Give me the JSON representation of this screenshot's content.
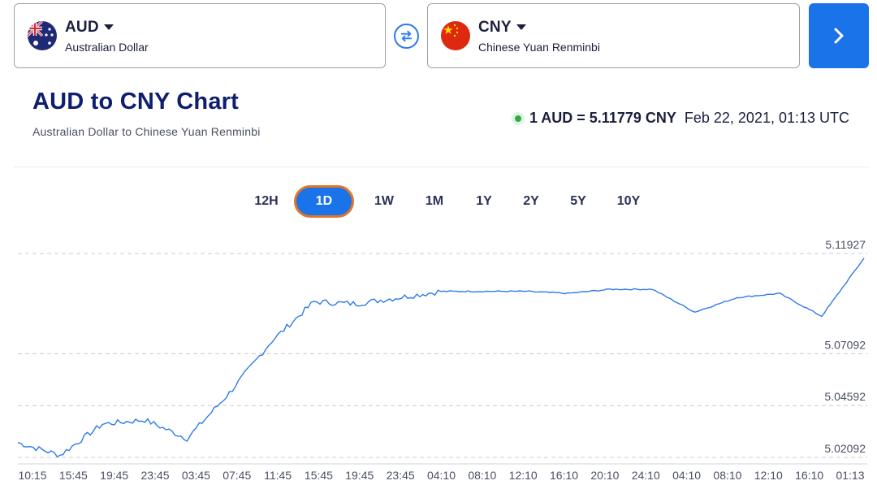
{
  "from_currency": {
    "code": "AUD",
    "name": "Australian Dollar",
    "flag": "australia-flag"
  },
  "to_currency": {
    "code": "CNY",
    "name": "Chinese Yuan Renminbi",
    "flag": "china-flag"
  },
  "swap_icon": "swap-arrows-icon",
  "convert_button_icon": "chevron-right-icon",
  "heading": {
    "title": "AUD to CNY Chart",
    "subtitle": "Australian Dollar to Chinese Yuan Renminbi"
  },
  "rate": {
    "value": "1 AUD = 5.11779 CNY",
    "timestamp": "Feb 22, 2021, 01:13 UTC",
    "status": "live"
  },
  "periods": [
    "12H",
    "1D",
    "1W",
    "1M",
    "1Y",
    "2Y",
    "5Y",
    "10Y"
  ],
  "active_period": "1D",
  "colors": {
    "accent": "#1a73e8",
    "title": "#0f1e6e",
    "active_outline": "#e0752b",
    "line": "#2e7be8",
    "live": "#2faa4a"
  },
  "chart_data": {
    "type": "line",
    "title": "",
    "xlabel": "",
    "ylabel": "",
    "x_tick_labels": [
      "10:15",
      "15:45",
      "19:45",
      "23:45",
      "03:45",
      "07:45",
      "11:45",
      "15:45",
      "19:45",
      "23:45",
      "04:10",
      "08:10",
      "12:10",
      "16:10",
      "20:10",
      "24:10",
      "04:10",
      "08:10",
      "12:10",
      "16:10",
      "01:13"
    ],
    "y_tick_labels": [
      "5.11927",
      "5.07092",
      "5.04592",
      "5.02092"
    ],
    "ylim": [
      5.02092,
      5.11927
    ],
    "grid": "horizontal dashed",
    "series": [
      {
        "x": [
          "10:15",
          "15:45",
          "19:45",
          "23:45",
          "03:45",
          "07:45",
          "11:45",
          "15:45",
          "19:45",
          "23:45",
          "04:10",
          "08:10",
          "12:10",
          "16:10",
          "20:10",
          "24:10",
          "04:10",
          "08:10",
          "12:10",
          "16:10",
          "01:13"
        ],
        "values": [
          5.028,
          5.022,
          5.037,
          5.039,
          5.03,
          5.052,
          5.077,
          5.096,
          5.095,
          5.098,
          5.101,
          5.101,
          5.101,
          5.1,
          5.102,
          5.102,
          5.091,
          5.098,
          5.1,
          5.089,
          5.117
        ]
      }
    ]
  }
}
